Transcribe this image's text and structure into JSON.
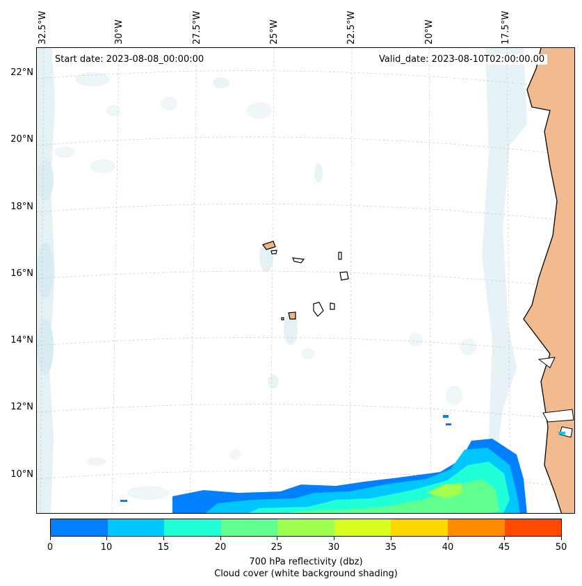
{
  "map": {
    "start_date_text": "Start date: 2023-08-08_00:00:00",
    "valid_date_text": "Valid_date: 2023-08-10T02:00:00.00",
    "lon_labels": [
      "32.5°W",
      "30°W",
      "27.5°W",
      "25°W",
      "22.5°W",
      "20°W",
      "17.5°W"
    ],
    "lat_labels": [
      "22°N",
      "20°N",
      "18°N",
      "16°N",
      "14°N",
      "12°N",
      "10°N"
    ]
  },
  "colorbar": {
    "colors": [
      "#0080ff",
      "#00c8ff",
      "#20ffd8",
      "#60ff90",
      "#a0ff50",
      "#d8ff20",
      "#ffd800",
      "#ff8c00",
      "#ff4800"
    ],
    "tick_labels": [
      "0",
      "10",
      "15",
      "20",
      "25",
      "30",
      "35",
      "40",
      "45",
      "50"
    ],
    "label_line1": "700 hPa reflectivity (dbz)",
    "label_line2": "Cloud cover (white background shading)"
  }
}
